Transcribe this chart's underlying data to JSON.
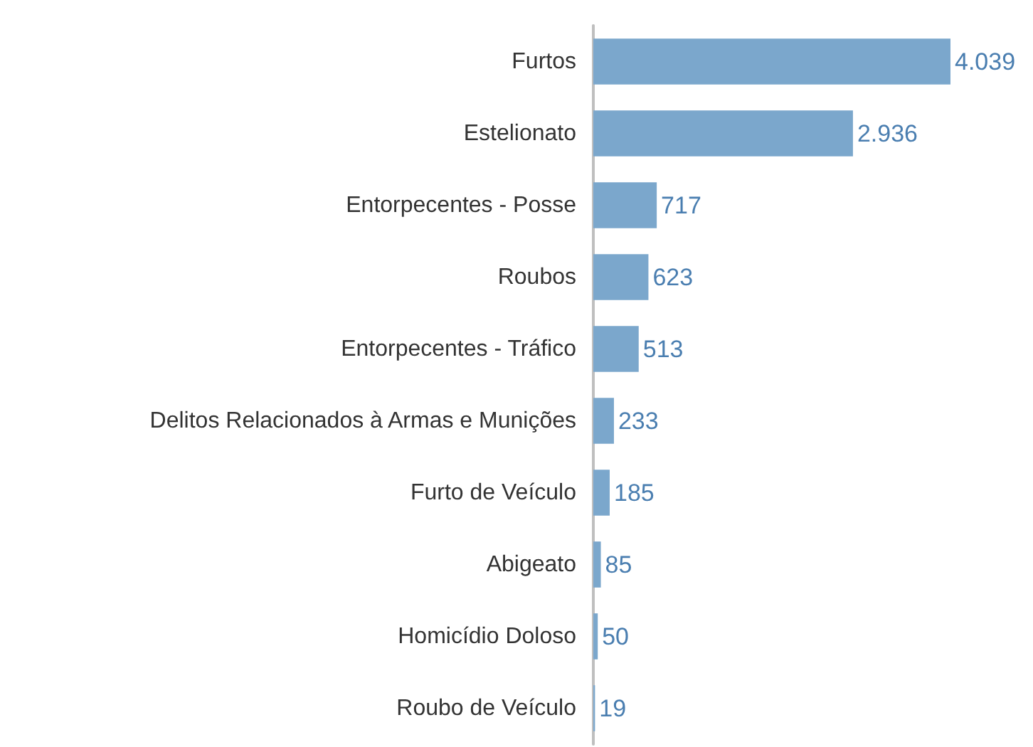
{
  "chart_data": {
    "type": "bar",
    "orientation": "horizontal",
    "tick_labels": "y",
    "categories": [
      "Furtos",
      "Estelionato",
      "Entorpecentes - Posse",
      "Roubos",
      "Entorpecentes - Tráfico",
      "Delitos Relacionados à Armas e Munições",
      "Furto de Veículo",
      "Abigeato",
      "Homicídio Doloso",
      "Roubo de Veículo"
    ],
    "series": [
      {
        "color": "#7ba7cc",
        "values": [
          4039,
          2936,
          717,
          623,
          513,
          233,
          185,
          85,
          50,
          19
        ],
        "value_labels": [
          "4.039",
          "2.936",
          "717",
          "623",
          "513",
          "233",
          "185",
          "85",
          "50",
          "19"
        ]
      }
    ]
  }
}
